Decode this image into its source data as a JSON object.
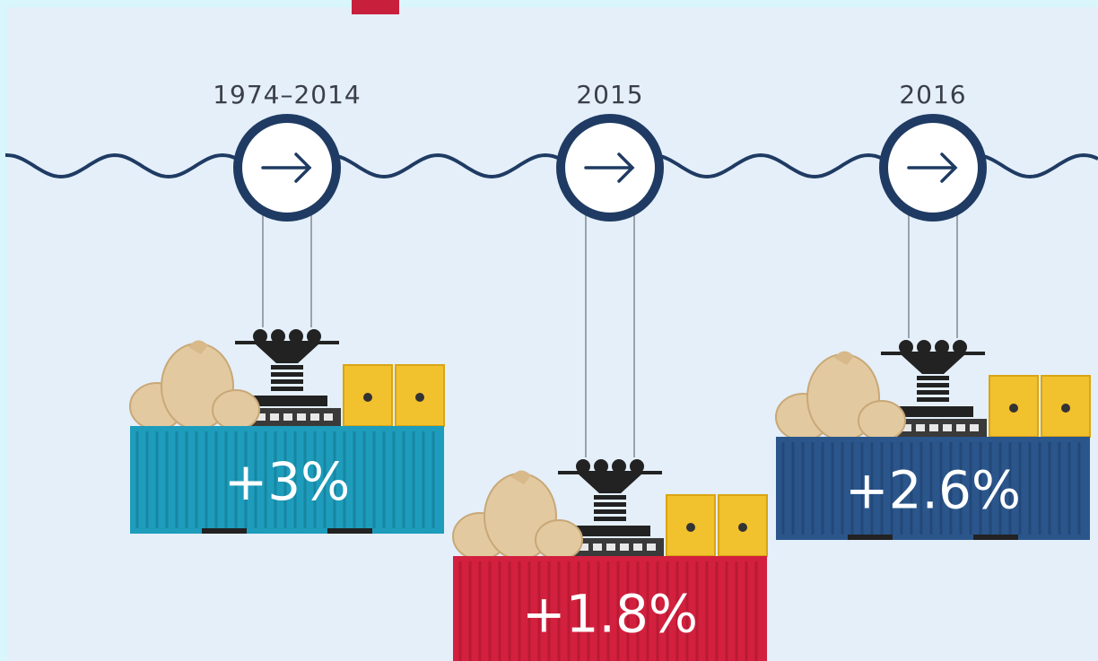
{
  "items": [
    {
      "period": "1974–2014",
      "value": "+3%"
    },
    {
      "period": "2015",
      "value": "+1.8%"
    },
    {
      "period": "2016",
      "value": "+2.6%"
    }
  ]
}
